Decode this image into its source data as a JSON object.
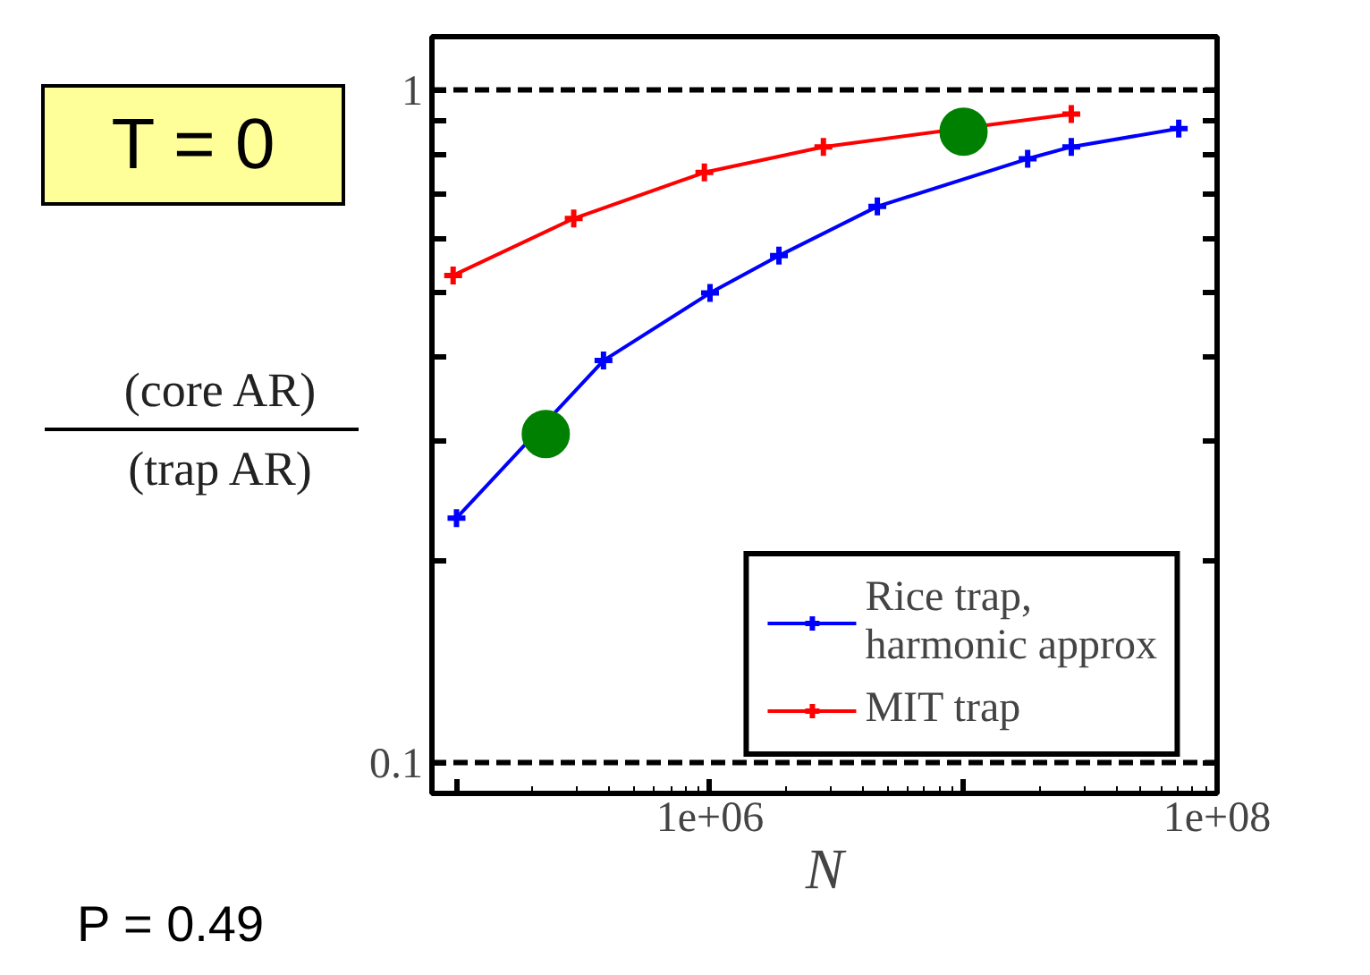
{
  "chart_data": {
    "type": "line",
    "xlabel": "N",
    "ylabel": "(core AR)\n(trap AR)",
    "log": "xy",
    "xlim": [
      80000,
      100000000
    ],
    "ylim": [
      0.09,
      1.2
    ],
    "xticks": [
      {
        "value": 100000,
        "label": null
      },
      {
        "value": 1000000,
        "label": "1e+06"
      },
      {
        "value": 10000000,
        "label": null
      },
      {
        "value": 100000000,
        "label": "1e+08"
      }
    ],
    "yticks": [
      0.1,
      {
        "value": 0.2,
        "label": null
      },
      {
        "value": 0.3,
        "label": null
      },
      {
        "value": 0.4,
        "label": null
      },
      {
        "value": 0.5,
        "label": null
      },
      {
        "value": 0.6,
        "label": null
      },
      {
        "value": 0.7,
        "label": null
      },
      {
        "value": 0.8,
        "label": null
      },
      {
        "value": 0.9,
        "label": null
      },
      1
    ],
    "grid": false,
    "legend": "bottom right",
    "marker": "cross",
    "line_style": "solid",
    "ref_lines": [
      {
        "axis": "y",
        "value": 1,
        "label": null,
        "line_style": "dashed",
        "color": "#000000"
      },
      {
        "axis": "y",
        "value": 0.1,
        "label": null,
        "line_style": "dashed",
        "color": "#000000"
      }
    ],
    "series": [
      {
        "name": "Rice trap,\nharmonic approx",
        "color": "#0000ff",
        "x": [
          100000,
          380000,
          1000000,
          1870000,
          4570000,
          17900000,
          26600000,
          70600000
        ],
        "values": [
          0.231,
          0.396,
          0.499,
          0.567,
          0.671,
          0.79,
          0.823,
          0.876
        ]
      },
      {
        "name": "MIT trap",
        "color": "#ff0000",
        "x": [
          97000,
          290000,
          950000,
          2800000,
          26600000
        ],
        "values": [
          0.53,
          0.644,
          0.754,
          0.823,
          0.921
        ]
      },
      {
        "type": "scatter",
        "marker": "circle",
        "color": "#008000",
        "x": [
          225000,
          10000000
        ],
        "values": [
          0.308,
          0.867
        ]
      }
    ],
    "annotations": [
      "T = 0",
      "P = 0.49"
    ]
  }
}
